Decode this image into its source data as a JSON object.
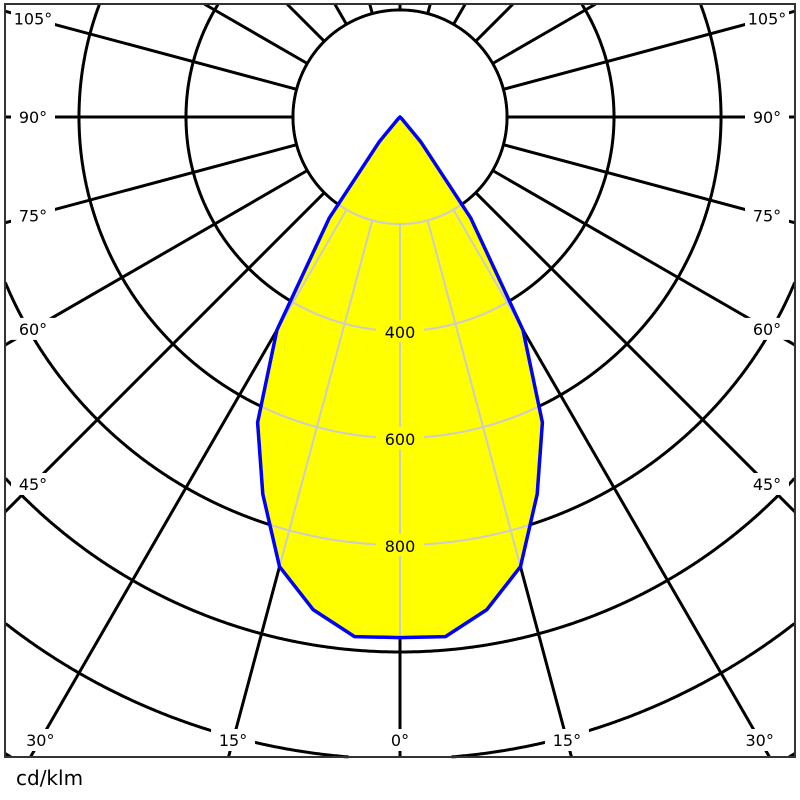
{
  "chart_data": {
    "type": "polar",
    "unit_label": "cd/klm",
    "angle_unit": "degrees",
    "symmetric": true,
    "angles": [
      0,
      5,
      10,
      15,
      20,
      25,
      30,
      35,
      40,
      45,
      50,
      55,
      60,
      65,
      70,
      75,
      80,
      85,
      90
    ],
    "values": [
      973,
      975,
      935,
      870,
      750,
      630,
      460,
      230,
      60,
      5,
      0,
      0,
      0,
      0,
      0,
      0,
      0,
      0,
      0
    ],
    "radial_grid_values": [
      200,
      400,
      600,
      800,
      1000,
      1200,
      1400
    ],
    "radial_tick_labels": [
      "400",
      "600",
      "800"
    ],
    "angle_grid_step": 15,
    "angle_tick_labels": [
      "0°",
      "15°",
      "30°",
      "45°",
      "60°",
      "75°",
      "90°",
      "105°"
    ],
    "colors": {
      "fill": "#ffff00",
      "outline": "#0000ff",
      "grid": "#000000",
      "grid_inside": "#cccccc"
    }
  }
}
